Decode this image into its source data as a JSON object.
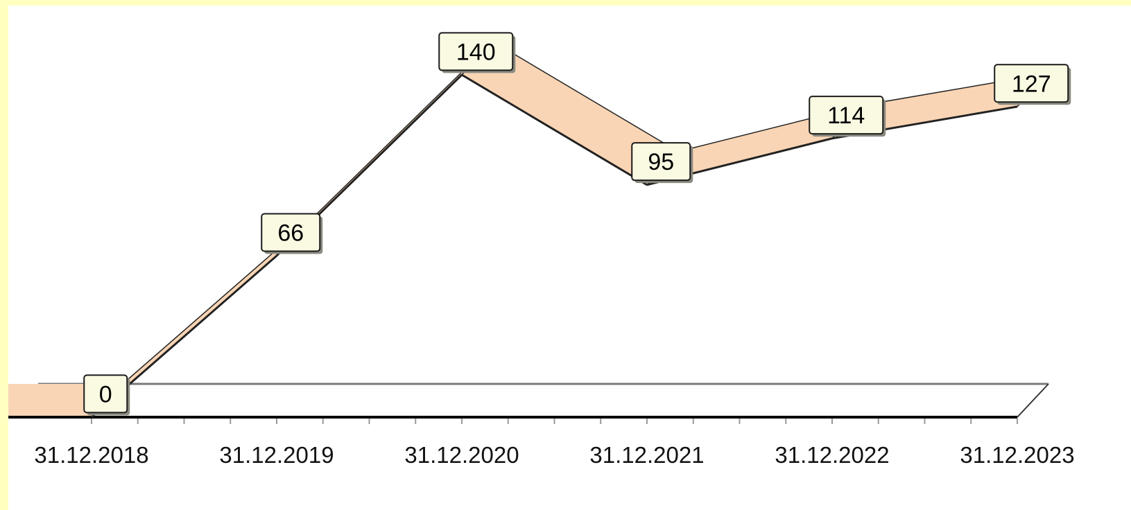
{
  "chart_data": {
    "type": "area",
    "style": "3d",
    "categories": [
      "31.12.2018",
      "31.12.2019",
      "31.12.2020",
      "31.12.2021",
      "31.12.2022",
      "31.12.2023"
    ],
    "series": [
      {
        "values": [
          0,
          66,
          140,
          95,
          114,
          127
        ]
      }
    ],
    "data_labels": [
      "0",
      "66",
      "140",
      "95",
      "114",
      "127"
    ],
    "ylim": [
      0,
      140
    ],
    "grid": false,
    "legend": "none",
    "colors": {
      "band": "#f9d5b5",
      "label_fill": "#fafae3",
      "outline": "#222222",
      "background": "#ffffc0"
    }
  }
}
